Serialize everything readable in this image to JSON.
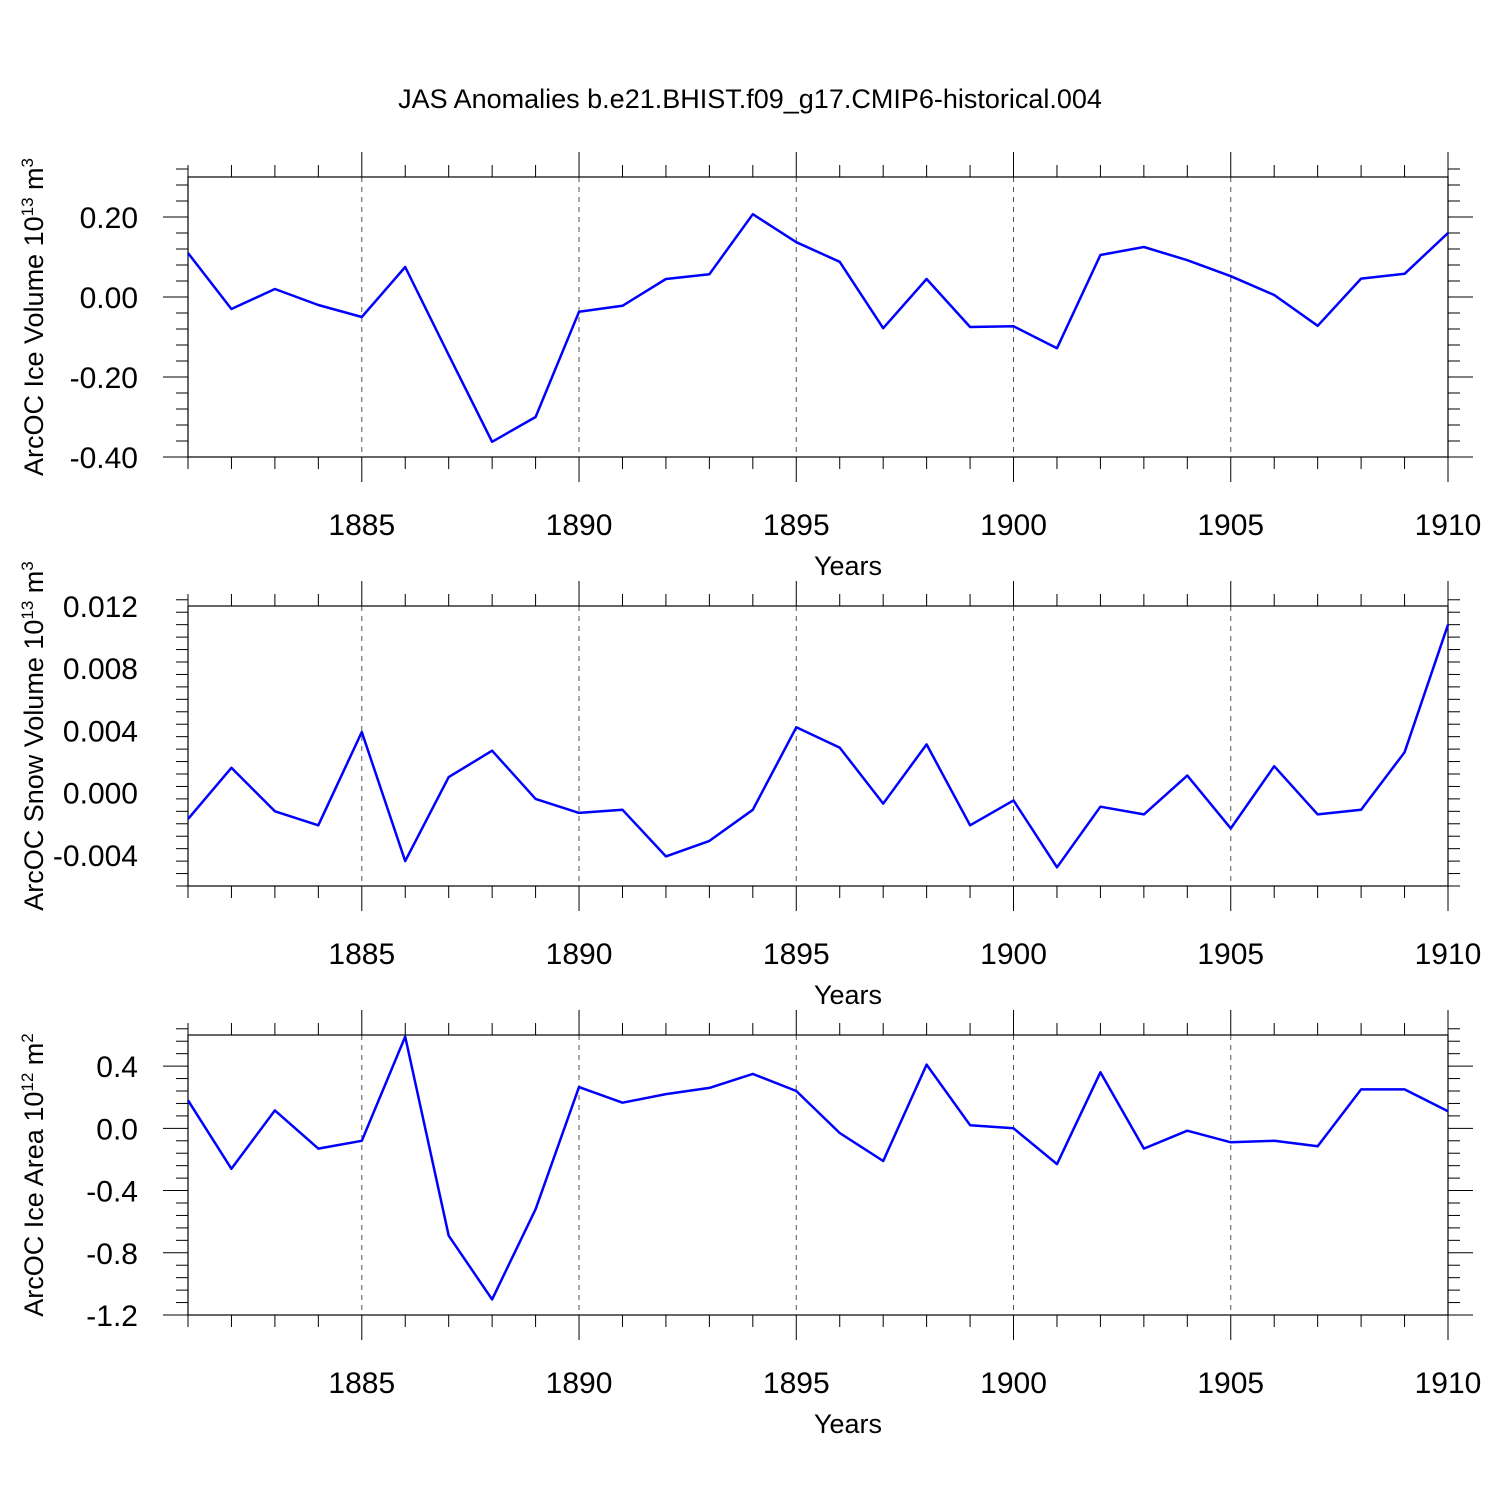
{
  "title": "JAS Anomalies b.e21.BHIST.f09_g17.CMIP6-historical.004",
  "line_color": "#0000ff",
  "chart_data": [
    {
      "type": "line",
      "xlabel": "Years",
      "ylabel": "ArcOC Ice Volume 10",
      "ylabel_exp": "13",
      "ylabel_unit": " m",
      "ylabel_unit_exp": "3",
      "xlim": [
        1881,
        1910
      ],
      "ylim": [
        -0.4,
        0.3
      ],
      "yticks": [
        -0.4,
        -0.2,
        0.0,
        0.2
      ],
      "yticklabels": [
        "-0.40",
        "-0.20",
        "0.00",
        "0.20"
      ],
      "xticks": [
        1885,
        1890,
        1895,
        1900,
        1905,
        1910
      ],
      "xticklabels": [
        "1885",
        "1890",
        "1895",
        "1900",
        "1905",
        "1910"
      ],
      "x": [
        1881,
        1882,
        1883,
        1884,
        1885,
        1886,
        1887,
        1888,
        1889,
        1890,
        1891,
        1892,
        1893,
        1894,
        1895,
        1896,
        1897,
        1898,
        1899,
        1900,
        1901,
        1902,
        1903,
        1904,
        1905,
        1906,
        1907,
        1908,
        1909,
        1910
      ],
      "values": [
        0.11,
        -0.03,
        0.02,
        -0.02,
        -0.05,
        0.075,
        -0.145,
        -0.362,
        -0.3,
        -0.037,
        -0.022,
        0.045,
        0.057,
        0.207,
        0.137,
        0.088,
        -0.078,
        0.045,
        -0.075,
        -0.073,
        -0.128,
        0.105,
        0.125,
        0.092,
        0.052,
        0.005,
        -0.072,
        0.046,
        0.058,
        0.16
      ]
    },
    {
      "type": "line",
      "xlabel": "Years",
      "ylabel": "ArcOC Snow Volume 10",
      "ylabel_exp": "13",
      "ylabel_unit": " m",
      "ylabel_unit_exp": "3",
      "xlim": [
        1881,
        1910
      ],
      "ylim": [
        -0.006,
        0.012
      ],
      "yticks": [
        -0.004,
        0.0,
        0.004,
        0.008,
        0.012
      ],
      "yticklabels": [
        "-0.004",
        "0.000",
        "0.004",
        "0.008",
        "0.012"
      ],
      "xticks": [
        1885,
        1890,
        1895,
        1900,
        1905,
        1910
      ],
      "xticklabels": [
        "1885",
        "1890",
        "1895",
        "1900",
        "1905",
        "1910"
      ],
      "x": [
        1881,
        1882,
        1883,
        1884,
        1885,
        1886,
        1887,
        1888,
        1889,
        1890,
        1891,
        1892,
        1893,
        1894,
        1895,
        1896,
        1897,
        1898,
        1899,
        1900,
        1901,
        1902,
        1903,
        1904,
        1905,
        1906,
        1907,
        1908,
        1909,
        1910
      ],
      "values": [
        -0.0017,
        0.0016,
        -0.0012,
        -0.0021,
        0.0039,
        -0.0044,
        0.001,
        0.0027,
        -0.0004,
        -0.0013,
        -0.0011,
        -0.0041,
        -0.0031,
        -0.0011,
        0.0042,
        0.0029,
        -0.0007,
        0.0031,
        -0.0021,
        -0.0005,
        -0.0048,
        -0.0009,
        -0.0014,
        0.0011,
        -0.0023,
        0.0017,
        -0.0014,
        -0.0011,
        0.0026,
        0.0108
      ]
    },
    {
      "type": "line",
      "xlabel": "Years",
      "ylabel": "ArcOC Ice Area 10",
      "ylabel_exp": "12",
      "ylabel_unit": " m",
      "ylabel_unit_exp": "2",
      "xlim": [
        1881,
        1910
      ],
      "ylim": [
        -1.2,
        0.6
      ],
      "yticks": [
        -1.2,
        -0.8,
        -0.4,
        0.0,
        0.4
      ],
      "yticklabels": [
        "-1.2",
        "-0.8",
        "-0.4",
        "0.0",
        "0.4"
      ],
      "xticks": [
        1885,
        1890,
        1895,
        1900,
        1905,
        1910
      ],
      "xticklabels": [
        "1885",
        "1890",
        "1895",
        "1900",
        "1905",
        "1910"
      ],
      "x": [
        1881,
        1882,
        1883,
        1884,
        1885,
        1886,
        1887,
        1888,
        1889,
        1890,
        1891,
        1892,
        1893,
        1894,
        1895,
        1896,
        1897,
        1898,
        1899,
        1900,
        1901,
        1902,
        1903,
        1904,
        1905,
        1906,
        1907,
        1908,
        1909,
        1910
      ],
      "values": [
        0.18,
        -0.26,
        0.115,
        -0.13,
        -0.08,
        0.59,
        -0.69,
        -1.1,
        -0.52,
        0.265,
        0.165,
        0.22,
        0.26,
        0.35,
        0.24,
        -0.03,
        -0.21,
        0.41,
        0.02,
        0.0,
        -0.23,
        0.36,
        -0.13,
        -0.015,
        -0.09,
        -0.08,
        -0.115,
        0.25,
        0.25,
        0.11
      ]
    }
  ]
}
